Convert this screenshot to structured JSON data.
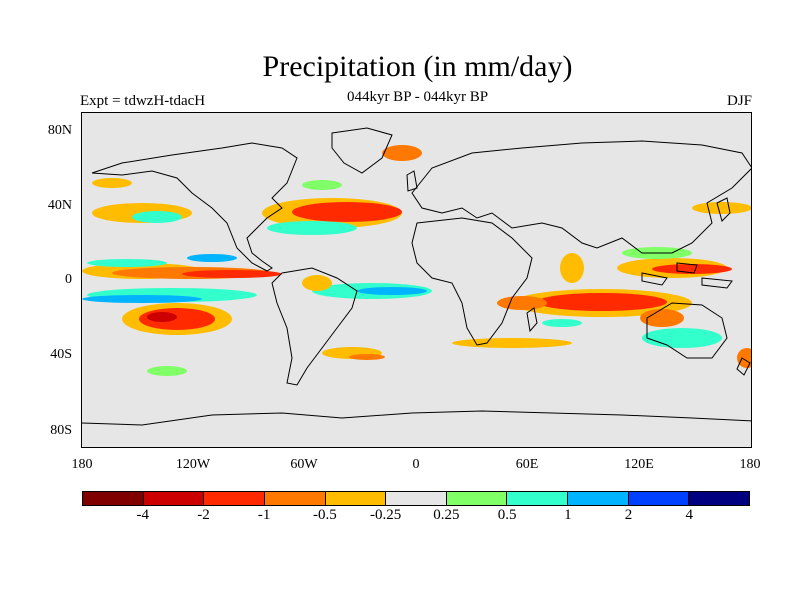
{
  "header": {
    "title": "Precipitation (in mm/day)",
    "experiment": "Expt = tdwzH-tdacH",
    "period": "044kyr BP - 044kyr BP",
    "season": "DJF"
  },
  "map": {
    "lat_labels": [
      "80N",
      "40N",
      "0",
      "40S",
      "80S"
    ],
    "lon_labels": [
      "180",
      "120W",
      "60W",
      "0",
      "60E",
      "120E",
      "180"
    ]
  },
  "colorbar": {
    "colors": [
      "#800000",
      "#cc0000",
      "#ff2a00",
      "#ff7800",
      "#ffbc00",
      "#e6e6e6",
      "#80ff66",
      "#33ffcc",
      "#00b4ff",
      "#0040ff",
      "#000080"
    ],
    "labels": [
      "-4",
      "-2",
      "-1",
      "-0.5",
      "-0.25",
      "0.25",
      "0.5",
      "1",
      "2",
      "4"
    ]
  },
  "colors": {
    "land_background": "#e6e6e6",
    "coastline": "#000000"
  }
}
